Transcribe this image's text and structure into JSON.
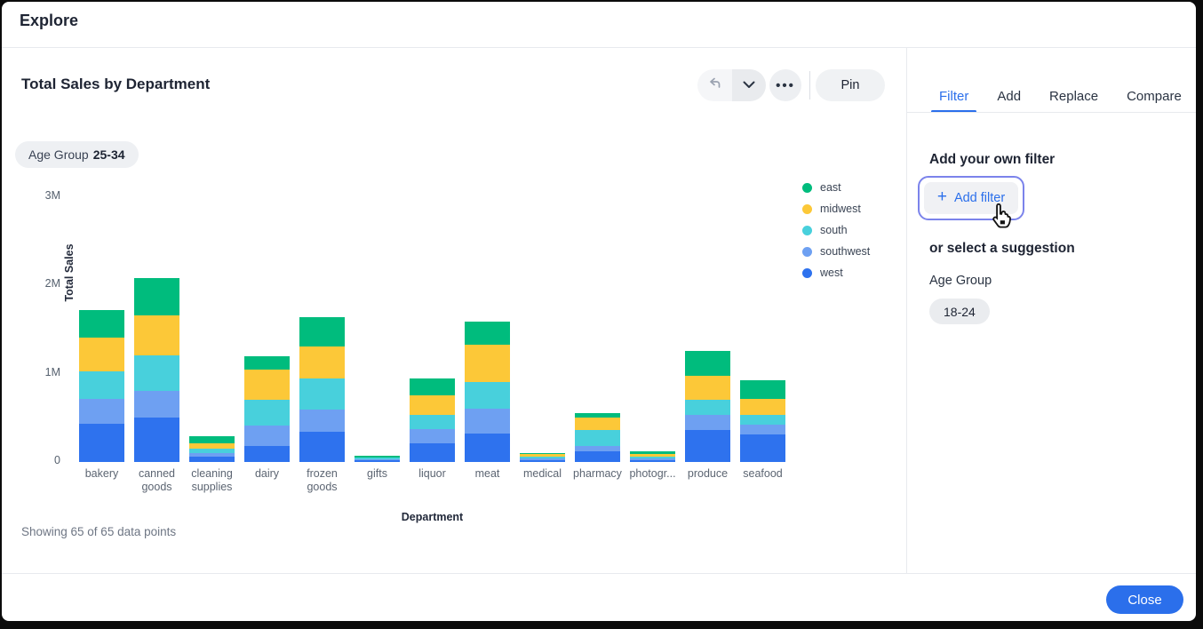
{
  "window": {
    "title": "Explore"
  },
  "chart_card": {
    "title": "Total Sales by Department",
    "filter_chip": {
      "label": "Age Group",
      "value": "25-34"
    },
    "toolbar": {
      "pin_label": "Pin",
      "undo_icon": "undo-arrow",
      "caret_icon": "chevron-down",
      "more_icon": "ellipsis"
    },
    "footer_note": "Showing 65 of 65 data points"
  },
  "chart_data": {
    "type": "bar",
    "stacked": true,
    "title": "Total Sales by Department",
    "xlabel": "Department",
    "ylabel": "Total Sales",
    "unit": "millions",
    "ylim": [
      0,
      3
    ],
    "yticks": [
      {
        "label": "0",
        "value": 0
      },
      {
        "label": "1M",
        "value": 1
      },
      {
        "label": "2M",
        "value": 2
      },
      {
        "label": "3M",
        "value": 3
      }
    ],
    "grid": false,
    "legend_position": "right",
    "legend_order": [
      "east",
      "midwest",
      "south",
      "southwest",
      "west"
    ],
    "categories": [
      "bakery",
      "canned goods",
      "cleaning supplies",
      "dairy",
      "frozen goods",
      "gifts",
      "liquor",
      "meat",
      "medical",
      "pharmacy",
      "photogr...",
      "produce",
      "seafood"
    ],
    "series": [
      {
        "name": "west",
        "color": "#2e72ee",
        "values": [
          0.43,
          0.5,
          0.06,
          0.18,
          0.34,
          0.02,
          0.21,
          0.32,
          0.025,
          0.12,
          0.023,
          0.36,
          0.31
        ]
      },
      {
        "name": "southwest",
        "color": "#6ea0f2",
        "values": [
          0.29,
          0.31,
          0.04,
          0.23,
          0.25,
          0.015,
          0.16,
          0.28,
          0.02,
          0.06,
          0.02,
          0.17,
          0.11
        ]
      },
      {
        "name": "south",
        "color": "#48d0dc",
        "values": [
          0.31,
          0.4,
          0.05,
          0.3,
          0.36,
          0.012,
          0.16,
          0.31,
          0.018,
          0.18,
          0.02,
          0.18,
          0.11
        ]
      },
      {
        "name": "midwest",
        "color": "#fcc838",
        "values": [
          0.38,
          0.45,
          0.06,
          0.34,
          0.36,
          0.008,
          0.23,
          0.42,
          0.03,
          0.14,
          0.027,
          0.27,
          0.19
        ]
      },
      {
        "name": "east",
        "color": "#00bc7d",
        "values": [
          0.31,
          0.43,
          0.08,
          0.15,
          0.33,
          0.012,
          0.19,
          0.26,
          0.005,
          0.05,
          0.027,
          0.28,
          0.21
        ]
      }
    ]
  },
  "panel": {
    "tabs": [
      {
        "label": "Filter",
        "active": true
      },
      {
        "label": "Add",
        "active": false
      },
      {
        "label": "Replace",
        "active": false
      },
      {
        "label": "Compare",
        "active": false
      }
    ],
    "add_filter_heading": "Add your own filter",
    "add_filter_button": "Add filter",
    "suggestion_heading": "or select a suggestion",
    "suggestion_group": "Age Group",
    "suggestion_chip": "18-24"
  },
  "footer": {
    "close_label": "Close"
  },
  "colors": {
    "accent_blue": "#2b6feb",
    "focus_ring": "#7b83eb",
    "text_primary": "#1e2433",
    "text_secondary": "#5c6572",
    "chip_bg": "#eef0f3",
    "divider": "#e8eaee"
  }
}
